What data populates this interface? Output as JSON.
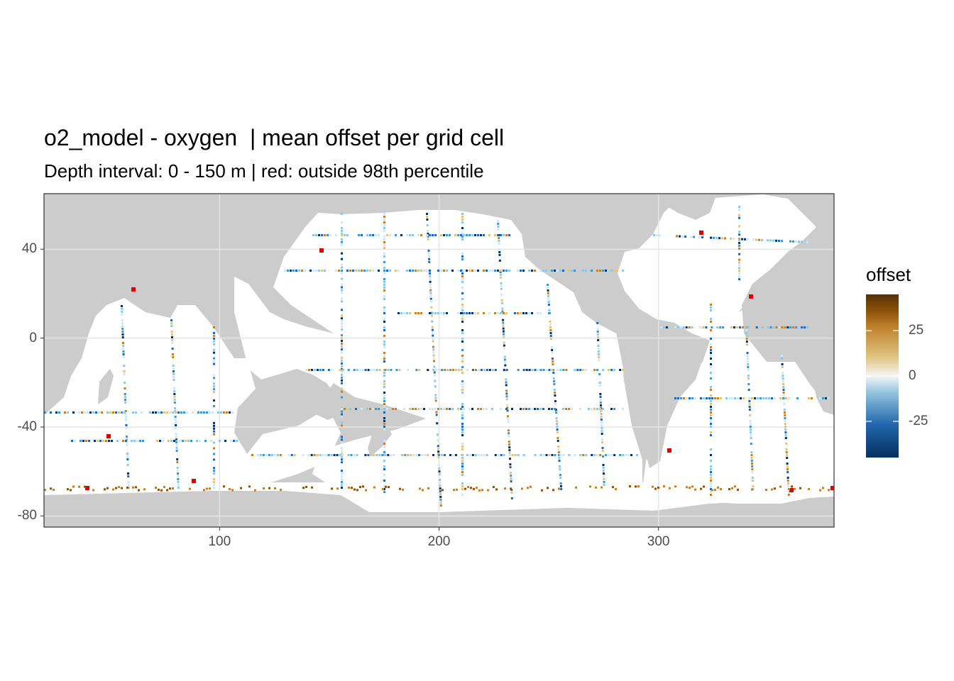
{
  "title": "o2_model - oxygen  | mean offset per grid cell",
  "subtitle": "Depth interval: 0 - 150 m | red: outside 98th percentile",
  "legend": {
    "title": "offset",
    "ticks": [
      {
        "value": 25,
        "label": "25"
      },
      {
        "value": 0,
        "label": "0"
      },
      {
        "value": -25,
        "label": "-25"
      }
    ],
    "range": [
      -45,
      45
    ],
    "colors": {
      "low": "#053061",
      "mid_low": "#2166ac",
      "light_blue": "#d1e5f0",
      "mid": "#f5f5f5",
      "tan": "#dfc27d",
      "high": "#8c510a",
      "max": "#543005"
    },
    "outlier_color": "#e00000"
  },
  "axes": {
    "x": {
      "range": [
        20,
        380
      ],
      "ticks": [
        {
          "value": 100,
          "label": "100"
        },
        {
          "value": 200,
          "label": "200"
        },
        {
          "value": 300,
          "label": "300"
        }
      ]
    },
    "y": {
      "range": [
        -85,
        65
      ],
      "ticks": [
        {
          "value": 40,
          "label": "40"
        },
        {
          "value": 0,
          "label": "0"
        },
        {
          "value": -40,
          "label": "-40"
        },
        {
          "value": -80,
          "label": "-80"
        }
      ]
    }
  },
  "colors": {
    "land": "#cccccc",
    "ocean": "#ffffff",
    "grid": "#ebebeb",
    "panel_border": "#333333"
  }
}
